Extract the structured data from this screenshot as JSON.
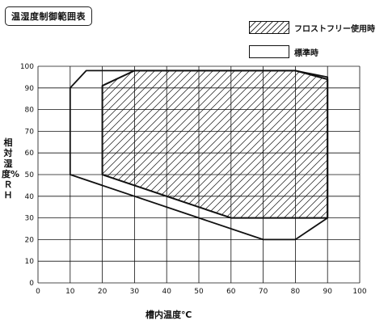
{
  "title": "温湿度制御範囲表",
  "legend": [
    {
      "label": "フロストフリー使用時",
      "style": "hatched"
    },
    {
      "label": "標準時",
      "style": "plain"
    }
  ],
  "chart_data": {
    "type": "area",
    "title": "温湿度制御範囲表",
    "xlabel": "槽内温度℃",
    "ylabel": "相対湿度%ＲＨ",
    "xlim": [
      0,
      100
    ],
    "ylim": [
      0,
      100
    ],
    "xticks": [
      "0",
      "10",
      "20",
      "30",
      "40",
      "50",
      "60",
      "70",
      "80",
      "90",
      "100"
    ],
    "yticks": [
      "0",
      "10",
      "20",
      "30",
      "40",
      "50",
      "60",
      "70",
      "80",
      "90",
      "100"
    ],
    "grid": true,
    "legend_position": "top-right",
    "series": [
      {
        "name": "標準時",
        "style": "outline",
        "points": [
          [
            10,
            50
          ],
          [
            10,
            90
          ],
          [
            15,
            98
          ],
          [
            80,
            98
          ],
          [
            90,
            95
          ],
          [
            90,
            30
          ],
          [
            80,
            20
          ],
          [
            70,
            20
          ],
          [
            10,
            50
          ]
        ]
      },
      {
        "name": "フロストフリー使用時",
        "style": "hatched",
        "points": [
          [
            20,
            50
          ],
          [
            20,
            91
          ],
          [
            30,
            98
          ],
          [
            80,
            98
          ],
          [
            90,
            94
          ],
          [
            90,
            30
          ],
          [
            60,
            30
          ],
          [
            20,
            50
          ]
        ]
      }
    ]
  }
}
